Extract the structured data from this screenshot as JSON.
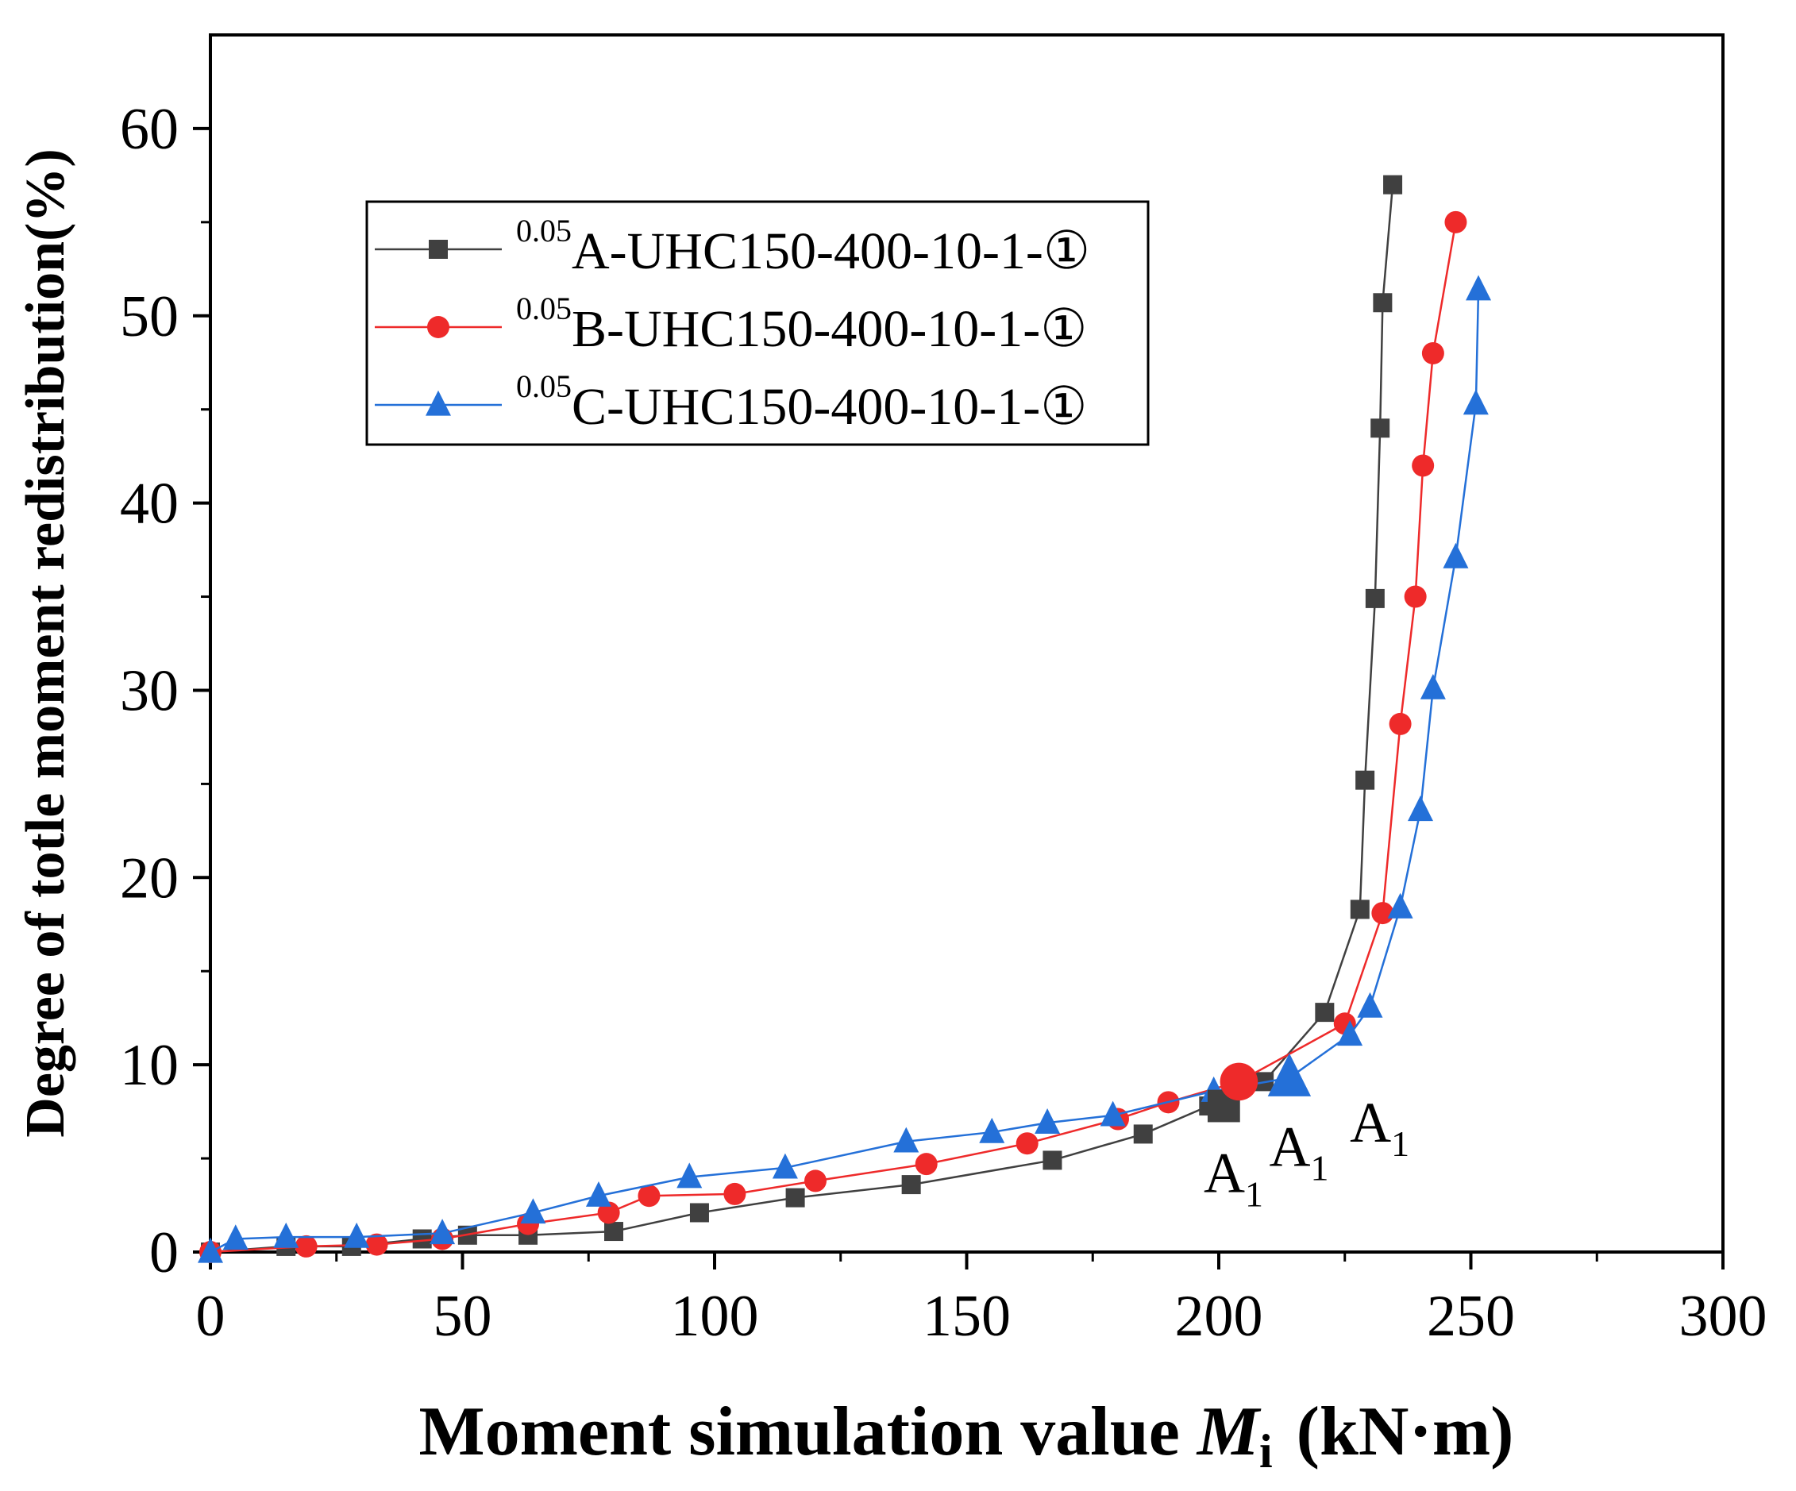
{
  "chart_data": {
    "type": "line",
    "xlabel": "Moment simulation value M",
    "xlabel_italic": "M",
    "xlabel_prefix": "Moment simulation value ",
    "xlabel_sub": "i",
    "xlabel_unit": "(kN·m)",
    "ylabel": "Degree of totle moment redistribution(%)",
    "xlim": [
      0,
      300
    ],
    "ylim": [
      0,
      65
    ],
    "xticks": [
      0,
      50,
      100,
      150,
      200,
      250,
      300
    ],
    "yticks": [
      0,
      10,
      20,
      30,
      40,
      50,
      60
    ],
    "legend_position": "top-left",
    "series": [
      {
        "name": "A-UHC150-400-10-1-①",
        "prefix": "0.05",
        "label": "A-UHC150-400-10-1-①",
        "color": "#404040",
        "marker": "square",
        "points": [
          [
            0,
            0
          ],
          [
            15,
            0.3
          ],
          [
            28,
            0.3
          ],
          [
            42,
            0.7
          ],
          [
            51,
            0.9
          ],
          [
            63,
            0.9
          ],
          [
            80,
            1.1
          ],
          [
            97,
            2.1
          ],
          [
            116,
            2.9
          ],
          [
            139,
            3.6
          ],
          [
            167,
            4.9
          ],
          [
            185,
            6.3
          ],
          [
            198,
            7.8
          ],
          [
            201,
            7.8
          ],
          [
            209,
            9.1
          ],
          [
            221,
            12.8
          ],
          [
            228,
            18.3
          ],
          [
            229,
            25.2
          ],
          [
            231,
            34.9
          ],
          [
            232,
            44
          ],
          [
            232.5,
            50.7
          ],
          [
            234.5,
            57
          ]
        ]
      },
      {
        "name": "B-UHC150-400-10-1-①",
        "prefix": "0.05",
        "label": "B-UHC150-400-10-1-①",
        "color": "#ee2a2a",
        "marker": "circle",
        "points": [
          [
            0,
            0
          ],
          [
            19,
            0.3
          ],
          [
            33,
            0.4
          ],
          [
            46,
            0.7
          ],
          [
            63,
            1.5
          ],
          [
            79,
            2.1
          ],
          [
            87,
            3.0
          ],
          [
            104,
            3.1
          ],
          [
            120,
            3.8
          ],
          [
            142,
            4.7
          ],
          [
            162,
            5.8
          ],
          [
            180,
            7.1
          ],
          [
            190,
            8.0
          ],
          [
            204,
            9.1
          ],
          [
            225,
            12.2
          ],
          [
            232.5,
            18.1
          ],
          [
            236,
            28.2
          ],
          [
            239,
            35
          ],
          [
            240.5,
            42
          ],
          [
            242.5,
            48
          ],
          [
            247,
            55
          ]
        ]
      },
      {
        "name": "C-UHC150-400-10-1-①",
        "prefix": "0.05",
        "label": "C-UHC150-400-10-1-①",
        "color": "#2470d8",
        "marker": "triangle",
        "points": [
          [
            0,
            0
          ],
          [
            5,
            0.7
          ],
          [
            15,
            0.8
          ],
          [
            29,
            0.8
          ],
          [
            46,
            1.0
          ],
          [
            64,
            2.1
          ],
          [
            77,
            3.0
          ],
          [
            95,
            4.0
          ],
          [
            114,
            4.5
          ],
          [
            138,
            5.9
          ],
          [
            155,
            6.4
          ],
          [
            166,
            6.9
          ],
          [
            179,
            7.3
          ],
          [
            199,
            8.6
          ],
          [
            214,
            9.3
          ],
          [
            226,
            11.6
          ],
          [
            230,
            13.1
          ],
          [
            236,
            18.4
          ],
          [
            240,
            23.6
          ],
          [
            242.5,
            30.1
          ],
          [
            247,
            37.1
          ],
          [
            251,
            45.3
          ],
          [
            251.5,
            51.4
          ]
        ]
      }
    ],
    "highlight_points": [
      {
        "series": 0,
        "x": 201,
        "y": 7.8
      },
      {
        "series": 1,
        "x": 204,
        "y": 9.1
      },
      {
        "series": 2,
        "x": 214,
        "y": 9.3
      }
    ],
    "annotations": [
      {
        "text": "A",
        "sub": "1",
        "x": 197,
        "y": 3.2
      },
      {
        "text": "A",
        "sub": "1",
        "x": 210,
        "y": 4.6
      },
      {
        "text": "A",
        "sub": "1",
        "x": 226,
        "y": 5.9
      }
    ]
  }
}
